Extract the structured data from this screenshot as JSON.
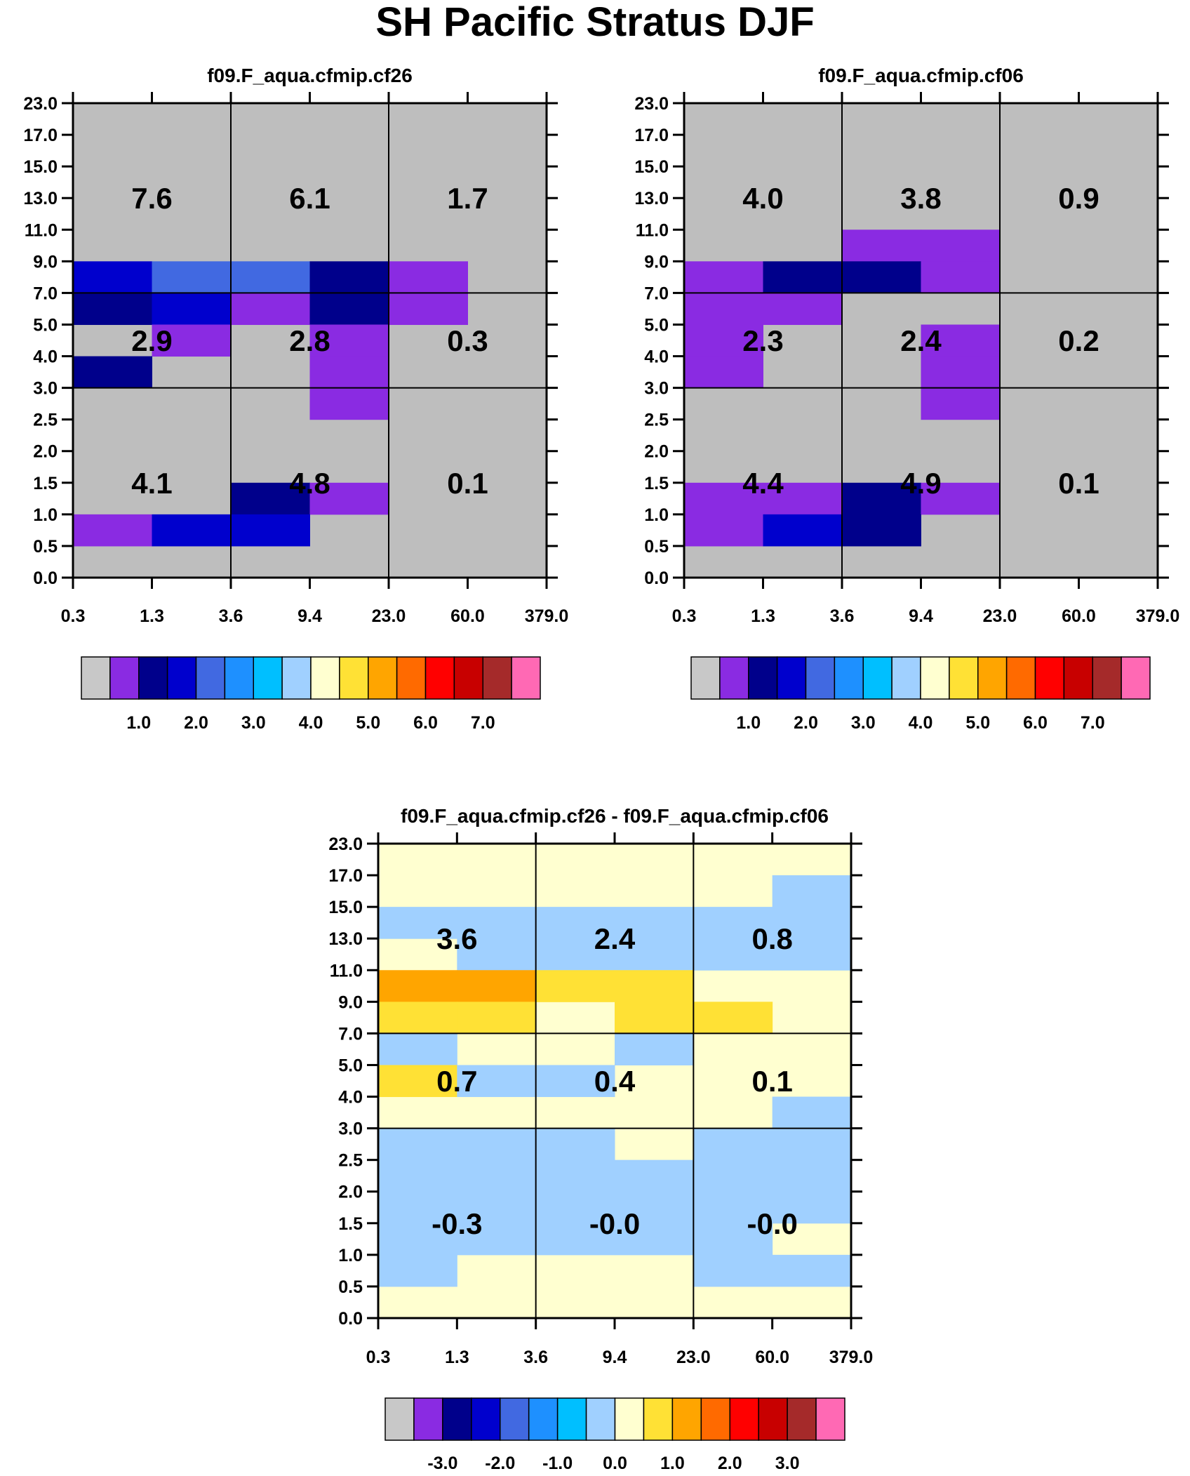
{
  "title": "SH Pacific Stratus DJF",
  "colors": {
    "grid_bg": "#bebebe",
    "scale": [
      "#c8c8c8",
      "#8a2be2",
      "#00008b",
      "#0000cd",
      "#4169e1",
      "#1e90ff",
      "#00bfff",
      "#a0d0ff",
      "#ffffd0",
      "#ffe135",
      "#ffa500",
      "#ff6a00",
      "#ff0000",
      "#c80000",
      "#a52a2a",
      "#ff69b4"
    ]
  },
  "chart_data": [
    {
      "type": "heatmap",
      "name": "cf26",
      "title": "f09.F_aqua.cfmip.cf26",
      "xticks": [
        "0.3",
        "1.3",
        "3.6",
        "9.4",
        "23.0",
        "60.0",
        "379.0"
      ],
      "yticks": [
        "0.0",
        "0.5",
        "1.0",
        "1.5",
        "2.0",
        "2.5",
        "3.0",
        "4.0",
        "5.0",
        "7.0",
        "9.0",
        "11.0",
        "13.0",
        "15.0",
        "17.0",
        "23.0"
      ],
      "cells": [
        {
          "x": 0,
          "y": 9,
          "c": 3
        },
        {
          "x": 1,
          "y": 9,
          "c": 4
        },
        {
          "x": 2,
          "y": 9,
          "c": 4
        },
        {
          "x": 3,
          "y": 9,
          "c": 2
        },
        {
          "x": 4,
          "y": 9,
          "c": 1
        },
        {
          "x": 0,
          "y": 8,
          "c": 2
        },
        {
          "x": 1,
          "y": 8,
          "c": 3
        },
        {
          "x": 2,
          "y": 8,
          "c": 1
        },
        {
          "x": 3,
          "y": 8,
          "c": 2
        },
        {
          "x": 4,
          "y": 8,
          "c": 1
        },
        {
          "x": 1,
          "y": 7,
          "c": 1
        },
        {
          "x": 3,
          "y": 7,
          "c": 1
        },
        {
          "x": 0,
          "y": 6,
          "c": 2
        },
        {
          "x": 3,
          "y": 6,
          "c": 1
        },
        {
          "x": 3,
          "y": 5,
          "c": 1
        },
        {
          "x": 2,
          "y": 2,
          "c": 2
        },
        {
          "x": 3,
          "y": 2,
          "c": 1
        },
        {
          "x": 0,
          "y": 1,
          "c": 1
        },
        {
          "x": 1,
          "y": 1,
          "c": 3
        },
        {
          "x": 2,
          "y": 1,
          "c": 3
        }
      ],
      "totals": [
        {
          "label": "7.6",
          "col": 0,
          "row": 0
        },
        {
          "label": "6.1",
          "col": 1,
          "row": 0
        },
        {
          "label": "1.7",
          "col": 2,
          "row": 0
        },
        {
          "label": "2.9",
          "col": 0,
          "row": 1
        },
        {
          "label": "2.8",
          "col": 1,
          "row": 1
        },
        {
          "label": "0.3",
          "col": 2,
          "row": 1
        },
        {
          "label": "4.1",
          "col": 0,
          "row": 2
        },
        {
          "label": "4.8",
          "col": 1,
          "row": 2
        },
        {
          "label": "0.1",
          "col": 2,
          "row": 2
        }
      ],
      "colorbar_labels": [
        "1.0",
        "2.0",
        "3.0",
        "4.0",
        "5.0",
        "6.0",
        "7.0"
      ]
    },
    {
      "type": "heatmap",
      "name": "cf06",
      "title": "f09.F_aqua.cfmip.cf06",
      "xticks": [
        "0.3",
        "1.3",
        "3.6",
        "9.4",
        "23.0",
        "60.0",
        "379.0"
      ],
      "yticks": [
        "0.0",
        "0.5",
        "1.0",
        "1.5",
        "2.0",
        "2.5",
        "3.0",
        "4.0",
        "5.0",
        "7.0",
        "9.0",
        "11.0",
        "13.0",
        "15.0",
        "17.0",
        "23.0"
      ],
      "cells": [
        {
          "x": 2,
          "y": 10,
          "c": 1
        },
        {
          "x": 3,
          "y": 10,
          "c": 1
        },
        {
          "x": 0,
          "y": 9,
          "c": 1
        },
        {
          "x": 1,
          "y": 9,
          "c": 2
        },
        {
          "x": 2,
          "y": 9,
          "c": 2
        },
        {
          "x": 3,
          "y": 9,
          "c": 1
        },
        {
          "x": 0,
          "y": 8,
          "c": 1
        },
        {
          "x": 1,
          "y": 8,
          "c": 1
        },
        {
          "x": 0,
          "y": 7,
          "c": 1
        },
        {
          "x": 3,
          "y": 7,
          "c": 1
        },
        {
          "x": 0,
          "y": 6,
          "c": 1
        },
        {
          "x": 3,
          "y": 6,
          "c": 1
        },
        {
          "x": 3,
          "y": 5,
          "c": 1
        },
        {
          "x": 0,
          "y": 2,
          "c": 1
        },
        {
          "x": 1,
          "y": 2,
          "c": 1
        },
        {
          "x": 2,
          "y": 2,
          "c": 2
        },
        {
          "x": 3,
          "y": 2,
          "c": 1
        },
        {
          "x": 0,
          "y": 1,
          "c": 1
        },
        {
          "x": 1,
          "y": 1,
          "c": 3
        },
        {
          "x": 2,
          "y": 1,
          "c": 2
        }
      ],
      "totals": [
        {
          "label": "4.0",
          "col": 0,
          "row": 0
        },
        {
          "label": "3.8",
          "col": 1,
          "row": 0
        },
        {
          "label": "0.9",
          "col": 2,
          "row": 0
        },
        {
          "label": "2.3",
          "col": 0,
          "row": 1
        },
        {
          "label": "2.4",
          "col": 1,
          "row": 1
        },
        {
          "label": "0.2",
          "col": 2,
          "row": 1
        },
        {
          "label": "4.4",
          "col": 0,
          "row": 2
        },
        {
          "label": "4.9",
          "col": 1,
          "row": 2
        },
        {
          "label": "0.1",
          "col": 2,
          "row": 2
        }
      ],
      "colorbar_labels": [
        "1.0",
        "2.0",
        "3.0",
        "4.0",
        "5.0",
        "6.0",
        "7.0"
      ]
    },
    {
      "type": "heatmap",
      "name": "diff",
      "title": "f09.F_aqua.cfmip.cf26 - f09.F_aqua.cfmip.cf06",
      "xticks": [
        "0.3",
        "1.3",
        "3.6",
        "9.4",
        "23.0",
        "60.0",
        "379.0"
      ],
      "yticks": [
        "0.0",
        "0.5",
        "1.0",
        "1.5",
        "2.0",
        "2.5",
        "3.0",
        "4.0",
        "5.0",
        "7.0",
        "9.0",
        "11.0",
        "13.0",
        "15.0",
        "17.0",
        "23.0"
      ],
      "default_color": 8,
      "cells": [
        {
          "x": 5,
          "y": 13,
          "c": 7
        },
        {
          "x": 0,
          "y": 12,
          "c": 7
        },
        {
          "x": 1,
          "y": 12,
          "c": 7
        },
        {
          "x": 2,
          "y": 12,
          "c": 7
        },
        {
          "x": 3,
          "y": 12,
          "c": 7
        },
        {
          "x": 4,
          "y": 12,
          "c": 7
        },
        {
          "x": 5,
          "y": 12,
          "c": 7
        },
        {
          "x": 1,
          "y": 11,
          "c": 7
        },
        {
          "x": 2,
          "y": 11,
          "c": 7
        },
        {
          "x": 3,
          "y": 11,
          "c": 7
        },
        {
          "x": 4,
          "y": 11,
          "c": 7
        },
        {
          "x": 5,
          "y": 11,
          "c": 7
        },
        {
          "x": 0,
          "y": 10,
          "c": 10
        },
        {
          "x": 1,
          "y": 10,
          "c": 10
        },
        {
          "x": 2,
          "y": 10,
          "c": 9
        },
        {
          "x": 3,
          "y": 10,
          "c": 9
        },
        {
          "x": 0,
          "y": 9,
          "c": 9
        },
        {
          "x": 1,
          "y": 9,
          "c": 9
        },
        {
          "x": 3,
          "y": 9,
          "c": 9
        },
        {
          "x": 4,
          "y": 9,
          "c": 9
        },
        {
          "x": 0,
          "y": 8,
          "c": 7
        },
        {
          "x": 3,
          "y": 8,
          "c": 7
        },
        {
          "x": 0,
          "y": 7,
          "c": 9
        },
        {
          "x": 1,
          "y": 7,
          "c": 7
        },
        {
          "x": 2,
          "y": 7,
          "c": 7
        },
        {
          "x": 5,
          "y": 6,
          "c": 7
        },
        {
          "x": 0,
          "y": 5,
          "c": 7
        },
        {
          "x": 1,
          "y": 5,
          "c": 7
        },
        {
          "x": 2,
          "y": 5,
          "c": 7
        },
        {
          "x": 4,
          "y": 5,
          "c": 7
        },
        {
          "x": 5,
          "y": 5,
          "c": 7
        },
        {
          "x": 0,
          "y": 4,
          "c": 7
        },
        {
          "x": 1,
          "y": 4,
          "c": 7
        },
        {
          "x": 2,
          "y": 4,
          "c": 7
        },
        {
          "x": 3,
          "y": 4,
          "c": 7
        },
        {
          "x": 4,
          "y": 4,
          "c": 7
        },
        {
          "x": 5,
          "y": 4,
          "c": 7
        },
        {
          "x": 0,
          "y": 3,
          "c": 7
        },
        {
          "x": 1,
          "y": 3,
          "c": 7
        },
        {
          "x": 2,
          "y": 3,
          "c": 7
        },
        {
          "x": 3,
          "y": 3,
          "c": 7
        },
        {
          "x": 4,
          "y": 3,
          "c": 7
        },
        {
          "x": 5,
          "y": 3,
          "c": 7
        },
        {
          "x": 0,
          "y": 2,
          "c": 7
        },
        {
          "x": 1,
          "y": 2,
          "c": 7
        },
        {
          "x": 2,
          "y": 2,
          "c": 7
        },
        {
          "x": 3,
          "y": 2,
          "c": 7
        },
        {
          "x": 4,
          "y": 2,
          "c": 7
        },
        {
          "x": 0,
          "y": 1,
          "c": 7
        },
        {
          "x": 4,
          "y": 1,
          "c": 7
        },
        {
          "x": 5,
          "y": 1,
          "c": 7
        }
      ],
      "totals": [
        {
          "label": "3.6",
          "col": 0,
          "row": 0
        },
        {
          "label": "2.4",
          "col": 1,
          "row": 0
        },
        {
          "label": "0.8",
          "col": 2,
          "row": 0
        },
        {
          "label": "0.7",
          "col": 0,
          "row": 1
        },
        {
          "label": "0.4",
          "col": 1,
          "row": 1
        },
        {
          "label": "0.1",
          "col": 2,
          "row": 1
        },
        {
          "label": "-0.3",
          "col": 0,
          "row": 2
        },
        {
          "label": "-0.0",
          "col": 1,
          "row": 2
        },
        {
          "label": "-0.0",
          "col": 2,
          "row": 2
        }
      ],
      "colorbar_labels": [
        "-3.0",
        "-2.0",
        "-1.0",
        "0.0",
        "1.0",
        "2.0",
        "3.0"
      ]
    }
  ]
}
